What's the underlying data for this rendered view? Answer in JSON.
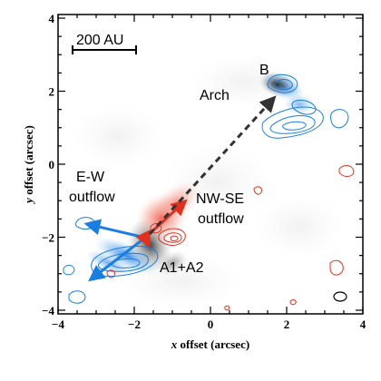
{
  "figure": {
    "x_axis_label_italic": "x",
    "x_axis_label_rest": " offset (arcsec)",
    "y_axis_label_italic": "y",
    "y_axis_label_rest": " offset (arcsec)",
    "xlim": [
      -4,
      4
    ],
    "ylim": [
      -4.1,
      4.1
    ],
    "x_ticks": [
      {
        "value": -4,
        "label": "−4"
      },
      {
        "value": -2,
        "label": "−2"
      },
      {
        "value": 0,
        "label": "0"
      },
      {
        "value": 2,
        "label": "2"
      },
      {
        "value": 4,
        "label": "4"
      }
    ],
    "y_ticks": [
      {
        "value": -4,
        "label": "−4"
      },
      {
        "value": -2,
        "label": "−2"
      },
      {
        "value": 0,
        "label": "0"
      },
      {
        "value": 2,
        "label": "2"
      },
      {
        "value": 4,
        "label": "4"
      }
    ],
    "scale_bar_label": "200 AU",
    "annotations": {
      "b": "B",
      "arch": "Arch",
      "ew_line1": "E-W",
      "ew_line2": "outflow",
      "nwse_line1": "NW-SE",
      "nwse_line2": "outflow",
      "a1a2": "A1+A2"
    },
    "colors": {
      "blue": "#1a7ee0",
      "red": "#e03020",
      "dark": "#333333"
    }
  }
}
